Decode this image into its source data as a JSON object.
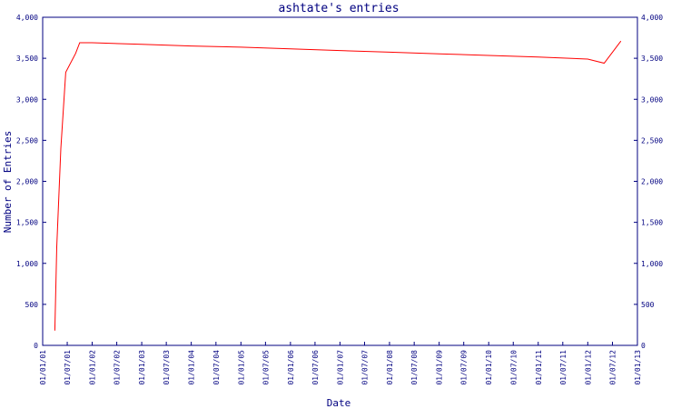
{
  "chart_data": {
    "type": "line",
    "title": "ashtate's entries",
    "xlabel": "Date",
    "ylabel": "Number of Entries",
    "ylim": [
      0,
      4000
    ],
    "y_ticks": [
      "0",
      "500",
      "1,000",
      "1,500",
      "2,000",
      "2,500",
      "3,000",
      "3,500",
      "4,000"
    ],
    "y_tick_values": [
      0,
      500,
      1000,
      1500,
      2000,
      2500,
      3000,
      3500,
      4000
    ],
    "x_ticks": [
      "01/01/01",
      "01/07/01",
      "01/01/02",
      "01/07/02",
      "01/01/03",
      "01/07/03",
      "01/01/04",
      "01/07/04",
      "01/01/05",
      "01/07/05",
      "01/01/06",
      "01/07/06",
      "01/01/07",
      "01/07/07",
      "01/01/08",
      "01/07/08",
      "01/01/09",
      "01/07/09",
      "01/01/10",
      "01/07/10",
      "01/01/11",
      "01/07/11",
      "01/01/12",
      "01/07/12",
      "01/01/13"
    ],
    "xlim": [
      "2001-01-01",
      "2013-01-01"
    ],
    "grid": false,
    "line_color": "#ff0000",
    "axis_color": "#000080",
    "series": [
      {
        "points": [
          {
            "x": "2001-04-01",
            "y": 180
          },
          {
            "x": "2001-04-15",
            "y": 1200
          },
          {
            "x": "2001-05-15",
            "y": 2400
          },
          {
            "x": "2001-06-20",
            "y": 3330
          },
          {
            "x": "2001-09-01",
            "y": 3560
          },
          {
            "x": "2001-10-01",
            "y": 3690
          },
          {
            "x": "2002-01-01",
            "y": 3690
          },
          {
            "x": "2003-01-01",
            "y": 3670
          },
          {
            "x": "2004-01-01",
            "y": 3650
          },
          {
            "x": "2005-01-01",
            "y": 3635
          },
          {
            "x": "2006-01-01",
            "y": 3615
          },
          {
            "x": "2007-01-01",
            "y": 3595
          },
          {
            "x": "2008-01-01",
            "y": 3575
          },
          {
            "x": "2009-01-01",
            "y": 3555
          },
          {
            "x": "2010-01-01",
            "y": 3535
          },
          {
            "x": "2011-01-01",
            "y": 3515
          },
          {
            "x": "2012-01-01",
            "y": 3490
          },
          {
            "x": "2012-05-01",
            "y": 3440
          },
          {
            "x": "2012-09-01",
            "y": 3710
          }
        ]
      }
    ]
  }
}
